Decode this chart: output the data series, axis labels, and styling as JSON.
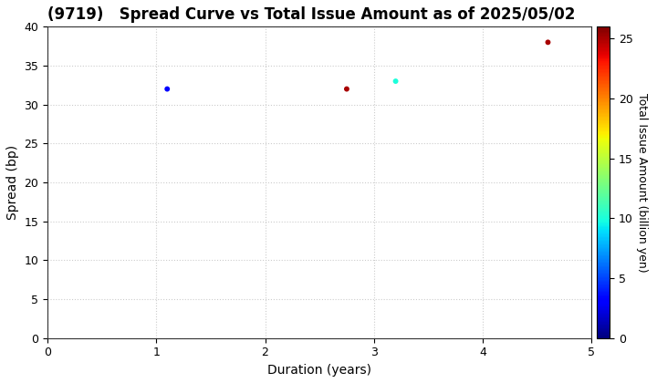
{
  "title": "(9719)   Spread Curve vs Total Issue Amount as of 2025/05/02",
  "xlabel": "Duration (years)",
  "ylabel": "Spread (bp)",
  "colorbar_label": "Total Issue Amount (billion yen)",
  "xlim": [
    0,
    5
  ],
  "ylim": [
    0,
    40
  ],
  "xticks": [
    0,
    1,
    2,
    3,
    4,
    5
  ],
  "yticks": [
    0,
    5,
    10,
    15,
    20,
    25,
    30,
    35,
    40
  ],
  "colorbar_min": 0,
  "colorbar_max": 26,
  "colorbar_ticks": [
    0,
    5,
    10,
    15,
    20,
    25
  ],
  "points": [
    {
      "duration": 1.1,
      "spread": 32,
      "amount": 3.0
    },
    {
      "duration": 2.75,
      "spread": 32,
      "amount": 25.0
    },
    {
      "duration": 3.2,
      "spread": 33,
      "amount": 10.0
    },
    {
      "duration": 4.6,
      "spread": 38,
      "amount": 25.0
    }
  ],
  "marker_size": 18,
  "background_color": "#ffffff",
  "grid_color": "#cccccc",
  "title_fontsize": 12,
  "axis_fontsize": 10,
  "tick_fontsize": 9,
  "cbar_fontsize": 9
}
